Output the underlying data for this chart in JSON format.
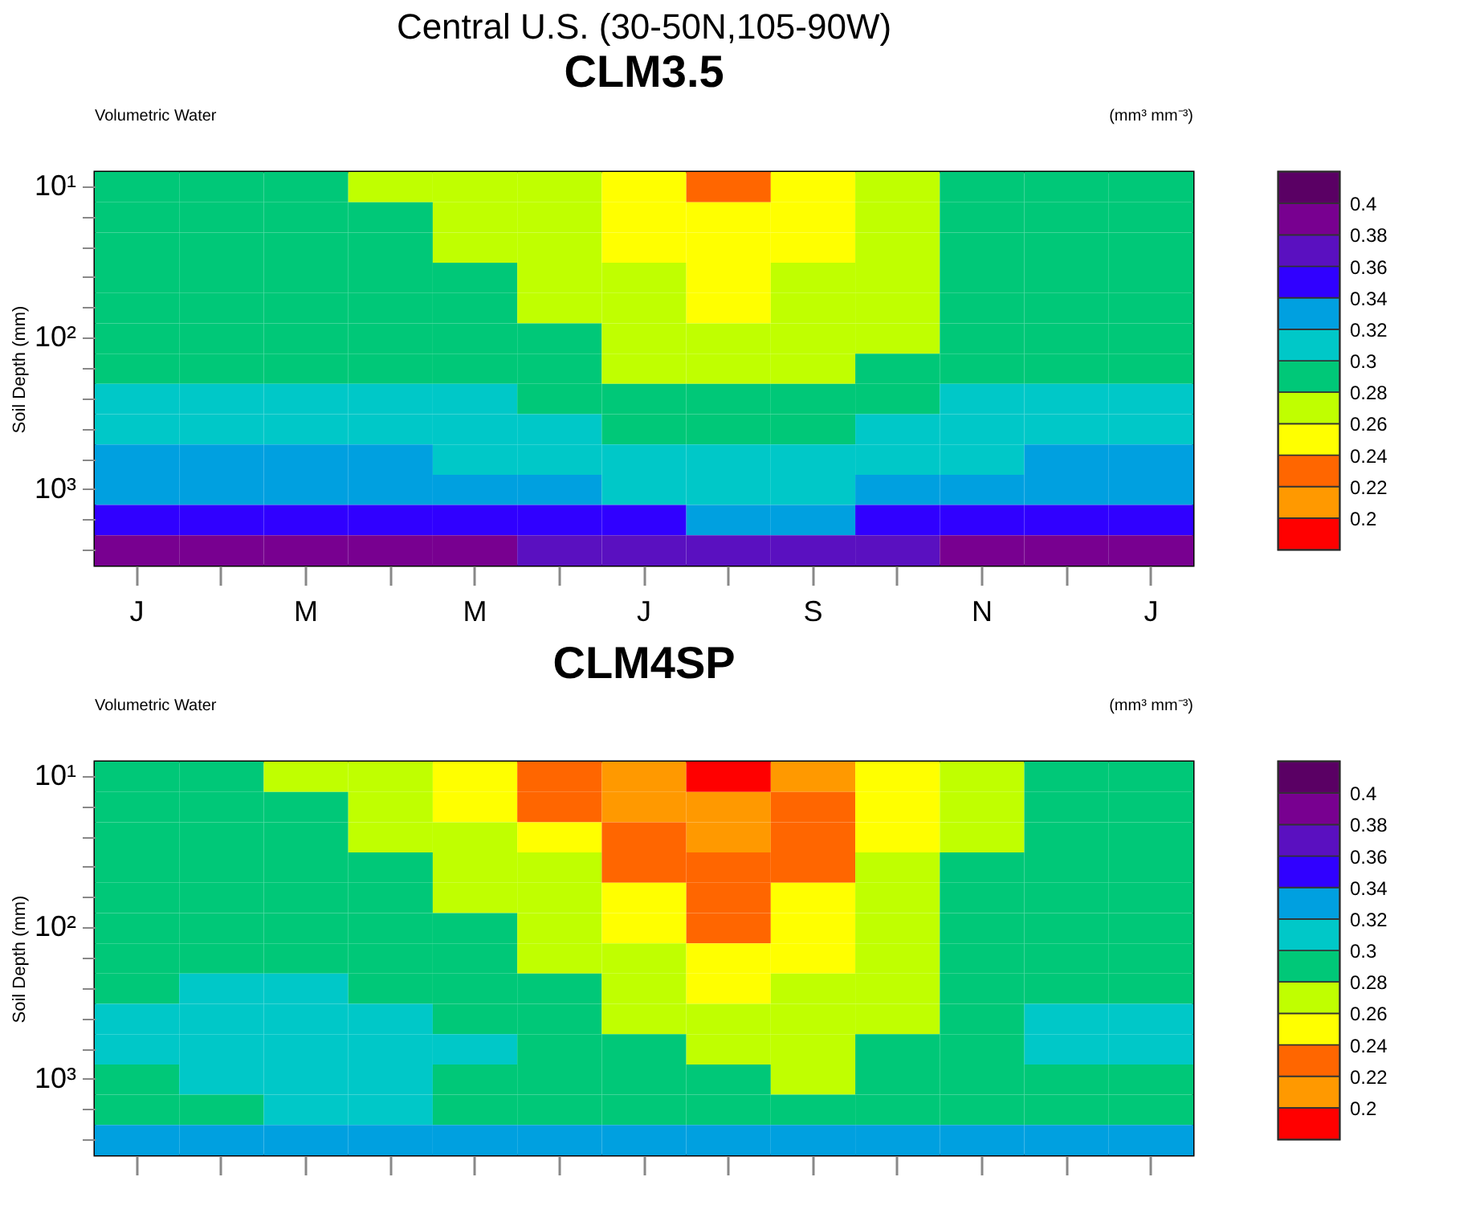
{
  "chart_data": [
    {
      "type": "heatmap",
      "title": "Central U.S. (30-50N,105-90W)",
      "subtitle": "CLM3.5",
      "ylabel": "Soil Depth (mm)",
      "annotations": [
        "Volumetric Water",
        "(mm³ mm⁻³)"
      ],
      "categories": [
        "J",
        null,
        "M",
        null,
        "M",
        null,
        "J",
        null,
        "S",
        null,
        "N",
        null,
        "J"
      ],
      "y_categories": [
        "10¹",
        null,
        null,
        null,
        null,
        "10²",
        null,
        null,
        null,
        null,
        "10³",
        null,
        null
      ],
      "cells": [
        [
          0.29,
          0.29,
          0.29,
          0.27,
          0.27,
          0.27,
          0.25,
          0.23,
          0.25,
          0.27,
          0.29,
          0.29,
          0.29
        ],
        [
          0.29,
          0.29,
          0.29,
          0.29,
          0.27,
          0.27,
          0.25,
          0.25,
          0.25,
          0.27,
          0.29,
          0.29,
          0.29
        ],
        [
          0.29,
          0.29,
          0.29,
          0.29,
          0.27,
          0.27,
          0.25,
          0.25,
          0.25,
          0.27,
          0.29,
          0.29,
          0.29
        ],
        [
          0.29,
          0.29,
          0.29,
          0.29,
          0.29,
          0.27,
          0.27,
          0.25,
          0.27,
          0.27,
          0.29,
          0.29,
          0.29
        ],
        [
          0.29,
          0.29,
          0.29,
          0.29,
          0.29,
          0.27,
          0.27,
          0.25,
          0.27,
          0.27,
          0.29,
          0.29,
          0.29
        ],
        [
          0.29,
          0.29,
          0.29,
          0.29,
          0.29,
          0.29,
          0.27,
          0.27,
          0.27,
          0.27,
          0.29,
          0.29,
          0.29
        ],
        [
          0.29,
          0.29,
          0.29,
          0.29,
          0.29,
          0.29,
          0.27,
          0.27,
          0.27,
          0.29,
          0.29,
          0.29,
          0.29
        ],
        [
          0.31,
          0.31,
          0.31,
          0.31,
          0.31,
          0.29,
          0.29,
          0.29,
          0.29,
          0.29,
          0.31,
          0.31,
          0.31
        ],
        [
          0.31,
          0.31,
          0.31,
          0.31,
          0.31,
          0.31,
          0.29,
          0.29,
          0.29,
          0.31,
          0.31,
          0.31,
          0.31
        ],
        [
          0.33,
          0.33,
          0.33,
          0.33,
          0.31,
          0.31,
          0.31,
          0.31,
          0.31,
          0.31,
          0.31,
          0.33,
          0.33
        ],
        [
          0.33,
          0.33,
          0.33,
          0.33,
          0.33,
          0.33,
          0.31,
          0.31,
          0.31,
          0.33,
          0.33,
          0.33,
          0.33
        ],
        [
          0.35,
          0.35,
          0.35,
          0.35,
          0.35,
          0.35,
          0.35,
          0.33,
          0.33,
          0.35,
          0.35,
          0.35,
          0.35
        ],
        [
          0.39,
          0.39,
          0.39,
          0.39,
          0.39,
          0.37,
          0.37,
          0.37,
          0.37,
          0.37,
          0.39,
          0.39,
          0.39
        ]
      ],
      "clim": [
        0.18,
        0.42
      ],
      "cticks": [
        0.2,
        0.22,
        0.24,
        0.26,
        0.28,
        0.3,
        0.32,
        0.34,
        0.36,
        0.38,
        0.4
      ],
      "colors": [
        "#ff0000",
        "#ff9900",
        "#ff6600",
        "#ffff00",
        "#c0ff00",
        "#00c878",
        "#00c8c8",
        "#00a0e0",
        "#3000ff",
        "#5a10c0",
        "#780090",
        "#5a0064"
      ]
    },
    {
      "type": "heatmap",
      "title": "CLM4SP",
      "ylabel": "Soil Depth (mm)",
      "annotations": [
        "Volumetric Water",
        "(mm³ mm⁻³)"
      ],
      "categories": [
        null,
        null,
        null,
        null,
        null,
        null,
        null,
        null,
        null,
        null,
        null,
        null,
        null
      ],
      "y_categories": [
        "10¹",
        null,
        null,
        null,
        null,
        "10²",
        null,
        null,
        null,
        null,
        "10³",
        null,
        null
      ],
      "cells": [
        [
          0.29,
          0.29,
          0.27,
          0.27,
          0.25,
          0.23,
          0.21,
          0.19,
          0.21,
          0.25,
          0.27,
          0.29,
          0.29
        ],
        [
          0.29,
          0.29,
          0.29,
          0.27,
          0.25,
          0.23,
          0.21,
          0.21,
          0.23,
          0.25,
          0.27,
          0.29,
          0.29
        ],
        [
          0.29,
          0.29,
          0.29,
          0.27,
          0.27,
          0.25,
          0.23,
          0.21,
          0.23,
          0.25,
          0.27,
          0.29,
          0.29
        ],
        [
          0.29,
          0.29,
          0.29,
          0.29,
          0.27,
          0.27,
          0.23,
          0.23,
          0.23,
          0.27,
          0.29,
          0.29,
          0.29
        ],
        [
          0.29,
          0.29,
          0.29,
          0.29,
          0.27,
          0.27,
          0.25,
          0.23,
          0.25,
          0.27,
          0.29,
          0.29,
          0.29
        ],
        [
          0.29,
          0.29,
          0.29,
          0.29,
          0.29,
          0.27,
          0.25,
          0.23,
          0.25,
          0.27,
          0.29,
          0.29,
          0.29
        ],
        [
          0.29,
          0.29,
          0.29,
          0.29,
          0.29,
          0.27,
          0.27,
          0.25,
          0.25,
          0.27,
          0.29,
          0.29,
          0.29
        ],
        [
          0.29,
          0.31,
          0.31,
          0.29,
          0.29,
          0.29,
          0.27,
          0.25,
          0.27,
          0.27,
          0.29,
          0.29,
          0.29
        ],
        [
          0.31,
          0.31,
          0.31,
          0.31,
          0.29,
          0.29,
          0.27,
          0.27,
          0.27,
          0.27,
          0.29,
          0.31,
          0.31
        ],
        [
          0.31,
          0.31,
          0.31,
          0.31,
          0.31,
          0.29,
          0.29,
          0.27,
          0.27,
          0.29,
          0.29,
          0.31,
          0.31
        ],
        [
          0.29,
          0.31,
          0.31,
          0.31,
          0.29,
          0.29,
          0.29,
          0.29,
          0.27,
          0.29,
          0.29,
          0.29,
          0.29
        ],
        [
          0.29,
          0.29,
          0.31,
          0.31,
          0.29,
          0.29,
          0.29,
          0.29,
          0.29,
          0.29,
          0.29,
          0.29,
          0.29
        ],
        [
          0.33,
          0.33,
          0.33,
          0.33,
          0.33,
          0.33,
          0.33,
          0.33,
          0.33,
          0.33,
          0.33,
          0.33,
          0.33
        ]
      ],
      "clim": [
        0.18,
        0.42
      ],
      "cticks": [
        0.2,
        0.22,
        0.24,
        0.26,
        0.28,
        0.3,
        0.32,
        0.34,
        0.36,
        0.38,
        0.4
      ],
      "colors": [
        "#ff0000",
        "#ff9900",
        "#ff6600",
        "#ffff00",
        "#c0ff00",
        "#00c878",
        "#00c8c8",
        "#00a0e0",
        "#3000ff",
        "#5a10c0",
        "#780090",
        "#5a0064"
      ]
    }
  ]
}
